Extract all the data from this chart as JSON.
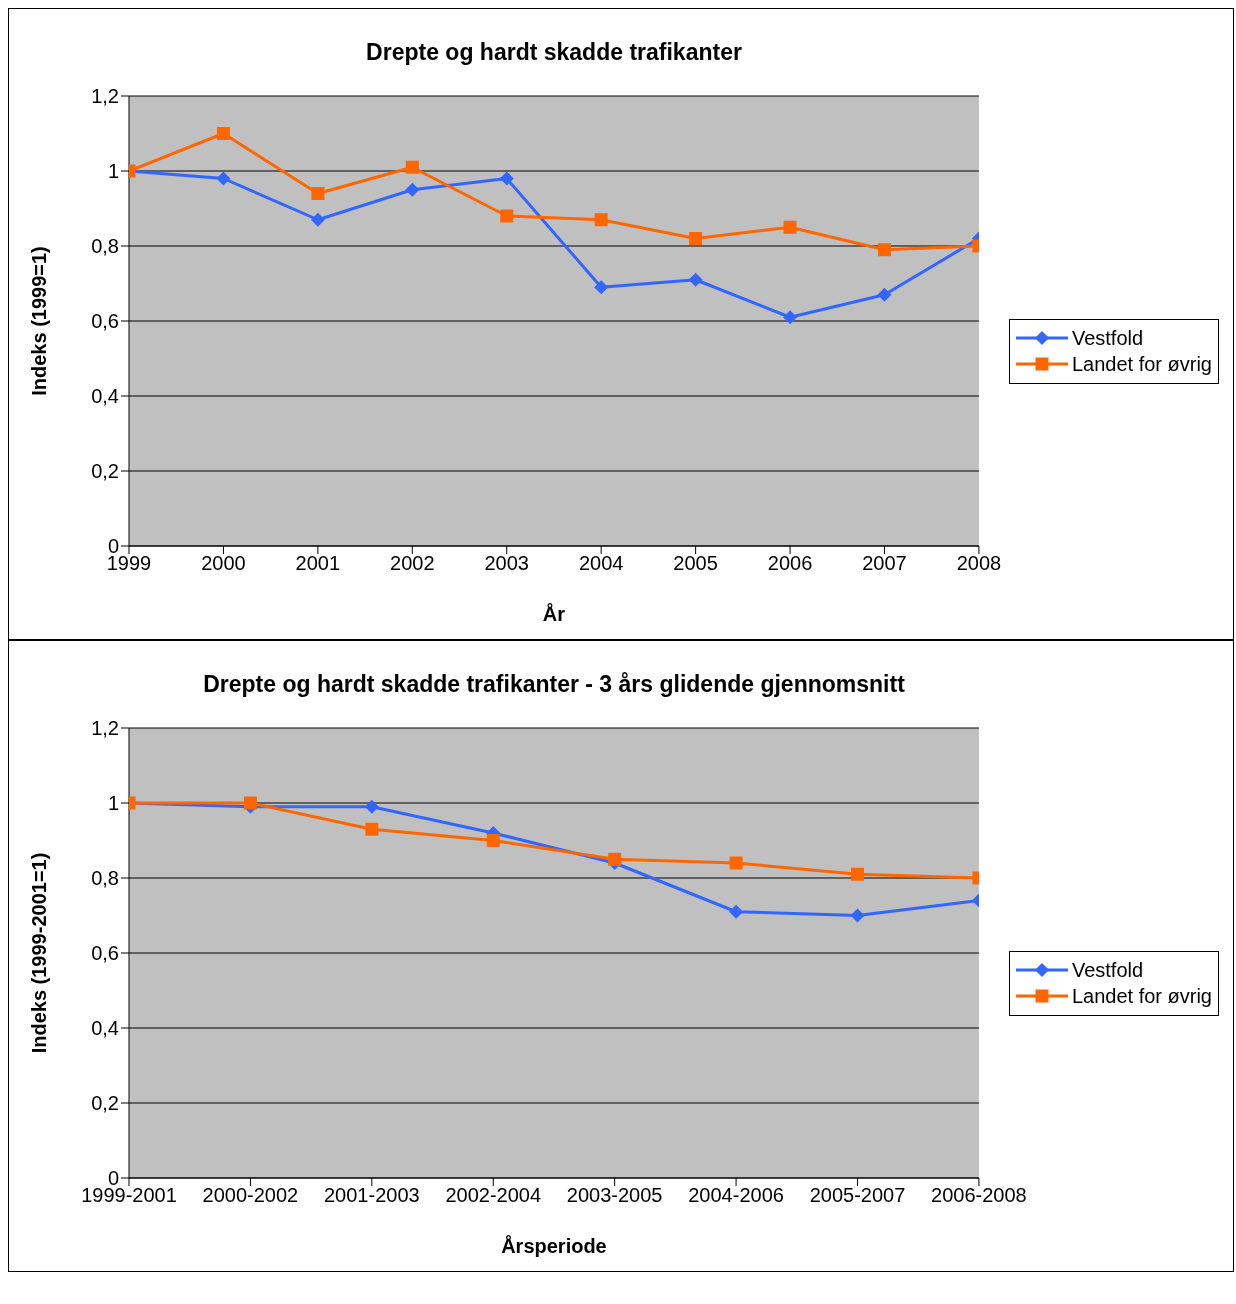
{
  "chart_data": [
    {
      "type": "line",
      "title": "Drepte og hardt skadde trafikanter",
      "xlabel": "År",
      "ylabel": "Indeks (1999=1)",
      "categories": [
        "1999",
        "2000",
        "2001",
        "2002",
        "2003",
        "2004",
        "2005",
        "2006",
        "2007",
        "2008"
      ],
      "yticks": [
        {
          "value": 0,
          "label": "0"
        },
        {
          "value": 0.2,
          "label": "0,2"
        },
        {
          "value": 0.4,
          "label": "0,4"
        },
        {
          "value": 0.6,
          "label": "0,6"
        },
        {
          "value": 0.8,
          "label": "0,8"
        },
        {
          "value": 1,
          "label": "1"
        },
        {
          "value": 1.2,
          "label": "1,2"
        }
      ],
      "series": [
        {
          "name": "Vestfold",
          "color": "#3366ff",
          "marker": "diamond",
          "values": [
            1.0,
            0.98,
            0.87,
            0.95,
            0.98,
            0.69,
            0.71,
            0.61,
            0.67,
            0.82
          ]
        },
        {
          "name": "Landet for øvrig",
          "color": "#ff6600",
          "marker": "square",
          "values": [
            1.0,
            1.1,
            0.94,
            1.01,
            0.88,
            0.87,
            0.82,
            0.85,
            0.79,
            0.8
          ]
        }
      ],
      "ylim": [
        0,
        1.2
      ],
      "grid": "y",
      "legend": "right",
      "line_style": "solid"
    },
    {
      "type": "line",
      "title": "Drepte og hardt skadde trafikanter - 3 års glidende gjennomsnitt",
      "xlabel": "Årsperiode",
      "ylabel": "Indeks (1999-2001=1)",
      "categories": [
        "1999-2001",
        "2000-2002",
        "2001-2003",
        "2002-2004",
        "2003-2005",
        "2004-2006",
        "2005-2007",
        "2006-2008"
      ],
      "series": [
        {
          "name": "Vestfold",
          "color": "#3366ff",
          "marker": "diamond",
          "values": [
            1.0,
            0.99,
            0.99,
            0.92,
            0.84,
            0.71,
            0.7,
            0.74
          ]
        },
        {
          "name": "Landet for øvrig",
          "color": "#ff6600",
          "marker": "square",
          "values": [
            1.0,
            1.0,
            0.93,
            0.9,
            0.85,
            0.84,
            0.81,
            0.8
          ]
        }
      ],
      "ylim": [
        0,
        1.2
      ],
      "yticks": [
        {
          "value": 0,
          "label": "0"
        },
        {
          "value": 0.2,
          "label": "0,2"
        },
        {
          "value": 0.4,
          "label": "0,4"
        },
        {
          "value": 0.6,
          "label": "0,6"
        },
        {
          "value": 0.8,
          "label": "0,8"
        },
        {
          "value": 1,
          "label": "1"
        },
        {
          "value": 1.2,
          "label": "1,2"
        }
      ],
      "grid": "y",
      "legend": "right",
      "line_style": "solid"
    }
  ]
}
